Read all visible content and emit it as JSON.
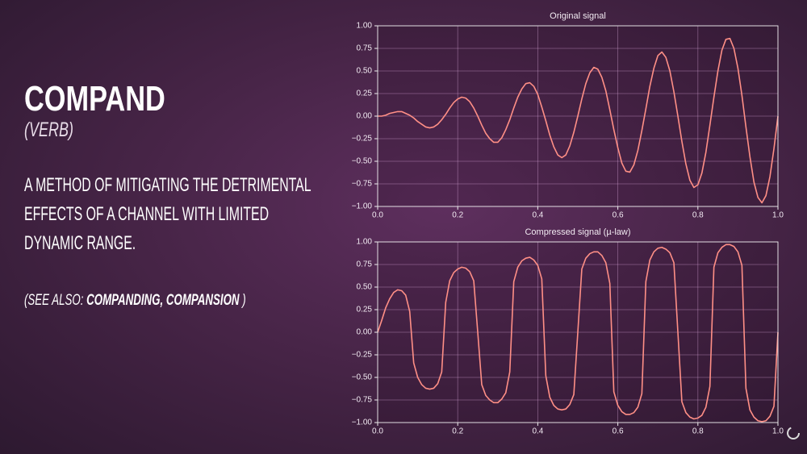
{
  "slide": {
    "title": "COMPAND",
    "part_of_speech": "(VERB)",
    "definition": [
      "A METHOD OF MITIGATING THE DETRIMENTAL",
      "EFFECTS OF A CHANNEL WITH LIMITED",
      "DYNAMIC RANGE."
    ],
    "see_also": {
      "prefix": "(SEE ALSO: ",
      "terms": "COMPANDING, COMPANSION",
      "suffix": " )"
    }
  },
  "chart_data": [
    {
      "type": "line",
      "title": "Original signal",
      "color": "#ff8f86",
      "grid": true,
      "xlim": [
        0,
        1
      ],
      "ylim": [
        -1,
        1
      ],
      "xticks": [
        {
          "value": 0,
          "label": "0.0"
        },
        {
          "value": 0.2,
          "label": "0.2"
        },
        {
          "value": 0.4,
          "label": "0.4"
        },
        {
          "value": 0.6,
          "label": "0.6"
        },
        {
          "value": 0.8,
          "label": "0.8"
        },
        {
          "value": 1,
          "label": "1.0"
        }
      ],
      "yticks": [
        {
          "value": -1,
          "label": "−1.00"
        },
        {
          "value": -0.75,
          "label": "−0.75"
        },
        {
          "value": -0.5,
          "label": "−0.50"
        },
        {
          "value": -0.25,
          "label": "−0.25"
        },
        {
          "value": 0,
          "label": "0.00"
        },
        {
          "value": 0.25,
          "label": "0.25"
        },
        {
          "value": 0.5,
          "label": "0.50"
        },
        {
          "value": 0.75,
          "label": "0.75"
        },
        {
          "value": 1,
          "label": "1.00"
        }
      ],
      "x": [
        0,
        0.01,
        0.02,
        0.03,
        0.04,
        0.05,
        0.06,
        0.07,
        0.08,
        0.09,
        0.1,
        0.11,
        0.12,
        0.13,
        0.14,
        0.15,
        0.16,
        0.17,
        0.18,
        0.19,
        0.2,
        0.21,
        0.22,
        0.23,
        0.24,
        0.25,
        0.26,
        0.27,
        0.28,
        0.29,
        0.3,
        0.31,
        0.32,
        0.33,
        0.34,
        0.35,
        0.36,
        0.37,
        0.38,
        0.39,
        0.4,
        0.41,
        0.42,
        0.43,
        0.44,
        0.45,
        0.46,
        0.47,
        0.48,
        0.49,
        0.5,
        0.51,
        0.52,
        0.53,
        0.54,
        0.55,
        0.56,
        0.57,
        0.58,
        0.59,
        0.6,
        0.61,
        0.62,
        0.63,
        0.64,
        0.65,
        0.66,
        0.67,
        0.68,
        0.69,
        0.7,
        0.71,
        0.72,
        0.73,
        0.74,
        0.75,
        0.76,
        0.77,
        0.78,
        0.79,
        0.8,
        0.81,
        0.82,
        0.83,
        0.84,
        0.85,
        0.86,
        0.87,
        0.88,
        0.89,
        0.9,
        0.91,
        0.92,
        0.93,
        0.94,
        0.95,
        0.96,
        0.97,
        0.98,
        0.99,
        1
      ],
      "values": [
        0,
        0,
        0.01,
        0.03,
        0.04,
        0.05,
        0.05,
        0.03,
        0.01,
        -0.02,
        -0.06,
        -0.09,
        -0.12,
        -0.13,
        -0.12,
        -0.09,
        -0.04,
        0.02,
        0.09,
        0.15,
        0.19,
        0.21,
        0.2,
        0.16,
        0.09,
        0,
        -0.1,
        -0.19,
        -0.25,
        -0.29,
        -0.29,
        -0.24,
        -0.15,
        -0.04,
        0.09,
        0.21,
        0.3,
        0.36,
        0.37,
        0.33,
        0.24,
        0.1,
        -0.05,
        -0.21,
        -0.34,
        -0.43,
        -0.46,
        -0.43,
        -0.33,
        -0.18,
        0,
        0.19,
        0.36,
        0.48,
        0.54,
        0.52,
        0.43,
        0.28,
        0.07,
        -0.15,
        -0.35,
        -0.52,
        -0.61,
        -0.62,
        -0.54,
        -0.38,
        -0.16,
        0.08,
        0.33,
        0.53,
        0.67,
        0.71,
        0.65,
        0.5,
        0.27,
        0,
        -0.28,
        -0.53,
        -0.71,
        -0.79,
        -0.76,
        -0.63,
        -0.4,
        -0.1,
        0.21,
        0.5,
        0.73,
        0.85,
        0.86,
        0.75,
        0.53,
        0.23,
        -0.12,
        -0.45,
        -0.73,
        -0.9,
        -0.96,
        -0.88,
        -0.67,
        -0.36,
        0
      ]
    },
    {
      "type": "line",
      "title": "Compressed signal (µ-law)",
      "color": "#ff8f86",
      "grid": true,
      "xlim": [
        0,
        1
      ],
      "ylim": [
        -1,
        1
      ],
      "xticks": [
        {
          "value": 0,
          "label": "0.0"
        },
        {
          "value": 0.2,
          "label": "0.2"
        },
        {
          "value": 0.4,
          "label": "0.4"
        },
        {
          "value": 0.6,
          "label": "0.6"
        },
        {
          "value": 0.8,
          "label": "0.8"
        },
        {
          "value": 1,
          "label": "1.0"
        }
      ],
      "yticks": [
        {
          "value": -1,
          "label": "−1.00"
        },
        {
          "value": -0.75,
          "label": "−0.75"
        },
        {
          "value": -0.5,
          "label": "−0.50"
        },
        {
          "value": -0.25,
          "label": "−0.25"
        },
        {
          "value": 0,
          "label": "0.00"
        },
        {
          "value": 0.25,
          "label": "0.25"
        },
        {
          "value": 0.5,
          "label": "0.50"
        },
        {
          "value": 0.75,
          "label": "0.75"
        },
        {
          "value": 1,
          "label": "1.00"
        }
      ],
      "x": [
        0,
        0.01,
        0.02,
        0.03,
        0.04,
        0.05,
        0.06,
        0.07,
        0.08,
        0.09,
        0.1,
        0.11,
        0.12,
        0.13,
        0.14,
        0.15,
        0.16,
        0.17,
        0.18,
        0.19,
        0.2,
        0.21,
        0.22,
        0.23,
        0.24,
        0.25,
        0.26,
        0.27,
        0.28,
        0.29,
        0.3,
        0.31,
        0.32,
        0.33,
        0.34,
        0.35,
        0.36,
        0.37,
        0.38,
        0.39,
        0.4,
        0.41,
        0.42,
        0.43,
        0.44,
        0.45,
        0.46,
        0.47,
        0.48,
        0.49,
        0.5,
        0.51,
        0.52,
        0.53,
        0.54,
        0.55,
        0.56,
        0.57,
        0.58,
        0.59,
        0.6,
        0.61,
        0.62,
        0.63,
        0.64,
        0.65,
        0.66,
        0.67,
        0.68,
        0.69,
        0.7,
        0.71,
        0.72,
        0.73,
        0.74,
        0.75,
        0.76,
        0.77,
        0.78,
        0.79,
        0.8,
        0.81,
        0.82,
        0.83,
        0.84,
        0.85,
        0.86,
        0.87,
        0.88,
        0.89,
        0.9,
        0.91,
        0.92,
        0.93,
        0.94,
        0.95,
        0.96,
        0.97,
        0.98,
        0.99,
        1
      ],
      "values": [
        0,
        0.13,
        0.27,
        0.37,
        0.44,
        0.47,
        0.46,
        0.41,
        0.23,
        -0.34,
        -0.5,
        -0.58,
        -0.62,
        -0.63,
        -0.62,
        -0.57,
        -0.44,
        0.33,
        0.57,
        0.66,
        0.7,
        0.72,
        0.71,
        0.67,
        0.57,
        0,
        -0.58,
        -0.7,
        -0.75,
        -0.78,
        -0.78,
        -0.74,
        -0.67,
        -0.44,
        0.56,
        0.72,
        0.79,
        0.82,
        0.83,
        0.8,
        0.74,
        0.59,
        -0.48,
        -0.72,
        -0.81,
        -0.85,
        -0.86,
        -0.85,
        -0.8,
        -0.69,
        0,
        0.7,
        0.82,
        0.87,
        0.89,
        0.89,
        0.85,
        0.77,
        0.54,
        -0.66,
        -0.81,
        -0.88,
        -0.91,
        -0.91,
        -0.89,
        -0.83,
        -0.68,
        0.56,
        0.8,
        0.89,
        0.93,
        0.94,
        0.92,
        0.88,
        0.77,
        0,
        -0.77,
        -0.89,
        -0.94,
        -0.96,
        -0.95,
        -0.92,
        -0.83,
        -0.6,
        0.72,
        0.88,
        0.94,
        0.97,
        0.97,
        0.95,
        0.89,
        0.74,
        -0.62,
        -0.86,
        -0.94,
        -0.98,
        -0.99,
        -0.98,
        -0.93,
        -0.82,
        0
      ]
    }
  ]
}
